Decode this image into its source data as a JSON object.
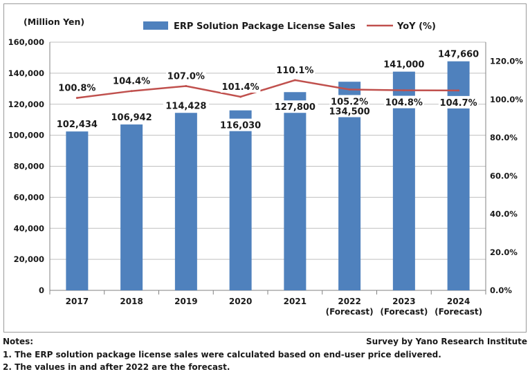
{
  "chart_data": {
    "type": "bar",
    "left_axis_unit": "(Million Yen)",
    "categories": [
      "2017",
      "2018",
      "2019",
      "2020",
      "2021",
      "2022",
      "2023",
      "2024"
    ],
    "category_sublabels": [
      "",
      "",
      "",
      "",
      "",
      "(Forecast)",
      "(Forecast)",
      "(Forecast)"
    ],
    "series": [
      {
        "name": "ERP Solution Package License Sales",
        "kind": "bar",
        "axis": "left",
        "color": "#4f81bd",
        "values": [
          102434,
          106942,
          114428,
          116030,
          127800,
          134500,
          141000,
          147660
        ],
        "labels": [
          "102,434",
          "106,942",
          "114,428",
          "116,030",
          "127,800",
          "134,500",
          "141,000",
          "147,660"
        ]
      },
      {
        "name": "YoY (%)",
        "kind": "line",
        "axis": "right",
        "color": "#c0504d",
        "values": [
          100.8,
          104.4,
          107.0,
          101.4,
          110.1,
          105.2,
          104.8,
          104.7
        ],
        "labels": [
          "100.8%",
          "104.4%",
          "107.0%",
          "101.4%",
          "110.1%",
          "105.2%",
          "104.8%",
          "104.7%"
        ]
      }
    ],
    "ylim_left": [
      0,
      160000
    ],
    "left_ticks": [
      "0",
      "20,000",
      "40,000",
      "60,000",
      "80,000",
      "100,000",
      "120,000",
      "140,000",
      "160,000"
    ],
    "ylim_right": [
      0,
      130
    ],
    "right_ticks": [
      "0.0%",
      "20.0%",
      "40.0%",
      "60.0%",
      "80.0%",
      "100.0%",
      "120.0%"
    ],
    "grid": true,
    "legend_position": "top"
  },
  "notes": {
    "heading": "Notes:",
    "source": "Survey by Yano Research Institute",
    "items": [
      "1. The ERP solution package license sales were calculated based on end-user price delivered.",
      "2. The values in and after 2022 are the forecast."
    ]
  }
}
